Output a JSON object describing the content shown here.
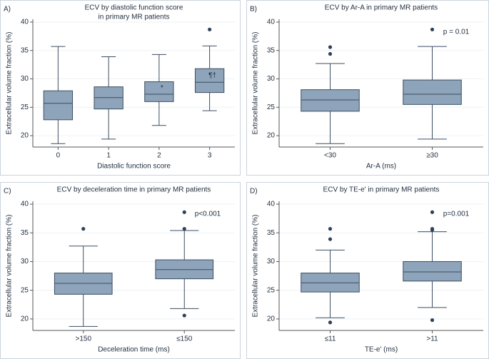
{
  "chart_data": [
    {
      "type": "box",
      "panel_label": "A)",
      "title": [
        "ECV by diastolic function score",
        "in primary MR patients"
      ],
      "x_label": "Diastolic function score",
      "y_label": "Extracellular volume fraction (%)",
      "categories": [
        "0",
        "1",
        "2",
        "3"
      ],
      "boxes": [
        {
          "min": 18.6,
          "q1": 22.8,
          "median": 25.7,
          "q3": 27.9,
          "max": 35.7,
          "outliers": []
        },
        {
          "min": 19.4,
          "q1": 24.7,
          "median": 26.7,
          "q3": 28.6,
          "max": 33.9,
          "outliers": []
        },
        {
          "min": 21.8,
          "q1": 26.0,
          "median": 27.3,
          "q3": 29.5,
          "max": 34.3,
          "outliers": [],
          "marker": "*"
        },
        {
          "min": 24.4,
          "q1": 27.6,
          "median": 29.4,
          "q3": 31.8,
          "max": 35.8,
          "outliers": [
            38.7
          ],
          "marker": "¶†"
        }
      ],
      "color": "#8ea4ba",
      "ylim": [
        18,
        40.5
      ],
      "yticks": [
        20,
        25,
        30,
        35,
        40
      ],
      "grid": true
    },
    {
      "type": "box",
      "panel_label": "B)",
      "title": [
        "ECV by Ar-A in primary MR patients"
      ],
      "x_label": "Ar-A (ms)",
      "y_label": "Extracellular volume fraction (%)",
      "categories": [
        "<30",
        "≥30"
      ],
      "note": "p = 0.01",
      "boxes": [
        {
          "min": 18.6,
          "q1": 24.3,
          "median": 26.3,
          "q3": 28.1,
          "max": 32.7,
          "outliers": [
            35.6,
            34.4
          ]
        },
        {
          "min": 19.4,
          "q1": 25.5,
          "median": 27.3,
          "q3": 29.8,
          "max": 35.7,
          "outliers": [
            38.7
          ]
        }
      ],
      "color": "#8ea4ba",
      "ylim": [
        18,
        40.5
      ],
      "yticks": [
        20,
        25,
        30,
        35,
        40
      ],
      "grid": true
    },
    {
      "type": "box",
      "panel_label": "C)",
      "title": [
        "ECV by deceleration time in primary MR patients"
      ],
      "x_label": "Deceleration time (ms)",
      "y_label": "Extracellular volume fraction (%)",
      "categories": [
        ">150",
        "≤150"
      ],
      "note": "p<0.001",
      "boxes": [
        {
          "min": 18.7,
          "q1": 24.3,
          "median": 26.2,
          "q3": 28.0,
          "max": 32.7,
          "outliers": [
            35.7
          ]
        },
        {
          "min": 21.8,
          "q1": 27.0,
          "median": 28.6,
          "q3": 30.3,
          "max": 35.4,
          "outliers": [
            38.6,
            35.7,
            20.6
          ]
        }
      ],
      "color": "#8ea4ba",
      "ylim": [
        18,
        40.5
      ],
      "yticks": [
        20,
        25,
        30,
        35,
        40
      ],
      "grid": true
    },
    {
      "type": "box",
      "panel_label": "D)",
      "title": [
        "ECV by TE-e' in primary MR patients"
      ],
      "x_label": "TE-e' (ms)",
      "y_label": "Extracellular volume fraction (%)",
      "categories": [
        "≤11",
        ">11"
      ],
      "note": "p=0.001",
      "boxes": [
        {
          "min": 20.2,
          "q1": 24.7,
          "median": 26.3,
          "q3": 28.0,
          "max": 32.0,
          "outliers": [
            35.7,
            33.9,
            19.4
          ]
        },
        {
          "min": 22.0,
          "q1": 26.6,
          "median": 28.2,
          "q3": 30.0,
          "max": 35.2,
          "outliers": [
            38.6,
            35.7,
            35.5,
            19.8
          ]
        }
      ],
      "color": "#8ea4ba",
      "ylim": [
        18,
        40.5
      ],
      "yticks": [
        20,
        25,
        30,
        35,
        40
      ],
      "grid": true
    }
  ]
}
